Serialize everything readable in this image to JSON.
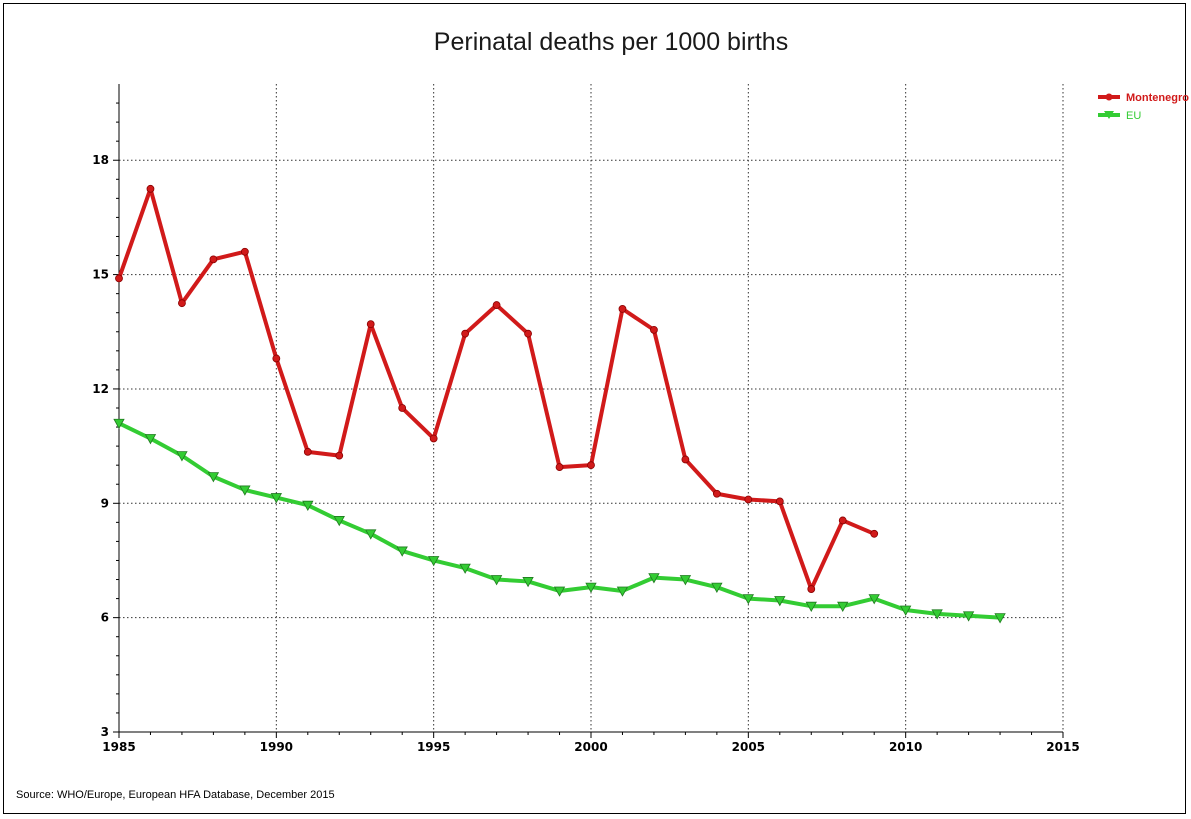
{
  "chart_data": {
    "type": "line",
    "title": "Perinatal deaths per 1000 births",
    "xlabel": "",
    "ylabel": "",
    "xlim": [
      1985,
      2015
    ],
    "ylim": [
      3,
      20
    ],
    "x_ticks": [
      1985,
      1990,
      1995,
      2000,
      2005,
      2010,
      2015
    ],
    "y_ticks": [
      3,
      6,
      9,
      12,
      15,
      18
    ],
    "grid": true,
    "legend_position": "top-right",
    "series": [
      {
        "name": "Montenegro",
        "color": "#d11a1a",
        "marker": "circle",
        "x": [
          1985,
          1986,
          1987,
          1988,
          1989,
          1990,
          1991,
          1992,
          1993,
          1994,
          1995,
          1996,
          1997,
          1998,
          1999,
          2000,
          2001,
          2002,
          2003,
          2004,
          2005,
          2006,
          2007,
          2008,
          2009
        ],
        "values": [
          14.9,
          17.25,
          14.25,
          15.4,
          15.6,
          12.8,
          10.35,
          10.25,
          13.7,
          11.5,
          10.7,
          13.45,
          14.2,
          13.45,
          9.95,
          10.0,
          14.1,
          13.55,
          10.15,
          9.25,
          9.1,
          9.05,
          6.75,
          8.55,
          8.2
        ]
      },
      {
        "name": "EU",
        "color": "#33cc33",
        "marker": "triangle-down",
        "x": [
          1985,
          1986,
          1987,
          1988,
          1989,
          1990,
          1991,
          1992,
          1993,
          1994,
          1995,
          1996,
          1997,
          1998,
          1999,
          2000,
          2001,
          2002,
          2003,
          2004,
          2005,
          2006,
          2007,
          2008,
          2009,
          2010,
          2011,
          2012,
          2013
        ],
        "values": [
          11.1,
          10.7,
          10.25,
          9.7,
          9.35,
          9.15,
          8.95,
          8.55,
          8.2,
          7.75,
          7.5,
          7.3,
          7.0,
          6.95,
          6.7,
          6.8,
          6.7,
          7.05,
          7.0,
          6.8,
          6.5,
          6.45,
          6.3,
          6.3,
          6.5,
          6.2,
          6.1,
          6.05,
          6.0
        ]
      }
    ],
    "source": "Source: WHO/Europe, European HFA Database, December 2015"
  }
}
